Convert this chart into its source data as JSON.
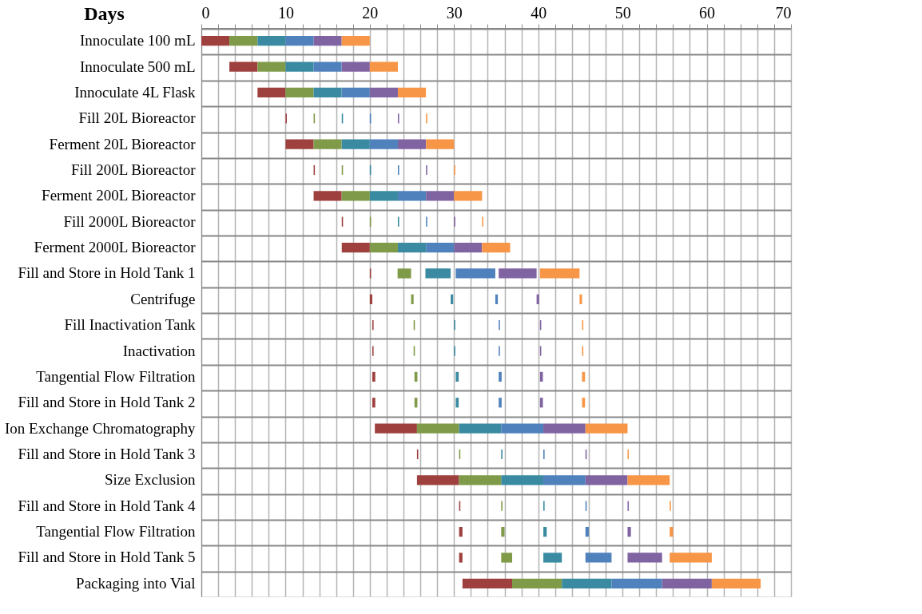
{
  "chart_data": {
    "type": "bar",
    "orientation": "horizontal",
    "xlabel": "Days",
    "categories": [
      "Innoculate 100 mL",
      "Innoculate 500 mL",
      "Innoculate 4L Flask",
      "Fill 20L Bioreactor",
      "Ferment 20L Bioreactor",
      "Fill 200L Bioreactor",
      "Ferment 200L Bioreactor",
      "Fill 2000L Bioreactor",
      "Ferment 2000L Bioreactor",
      "Fill and Store in Hold Tank 1",
      "Centrifuge",
      "Fill Inactivation Tank",
      "Inactivation",
      "Tangential Flow Filtration",
      "Fill and Store in Hold Tank 2",
      "Ion Exchange Chromatography",
      "Fill and Store in Hold Tank 3",
      "Size Exclusion",
      "Fill and Store in Hold Tank 4",
      "Tangential Flow Filtration",
      "Fill and Store in Hold Tank 5",
      "Packaging into Vial"
    ],
    "series": [
      {
        "color": "#9e413e",
        "base": [
          0,
          3.33,
          6.67,
          10,
          10,
          13.33,
          13.33,
          16.67,
          16.67,
          20,
          20,
          20.3,
          20.3,
          20.3,
          20.3,
          20.6,
          25.6,
          25.6,
          30.6,
          30.6,
          30.6,
          31
        ],
        "values": [
          3.33,
          3.33,
          3.33,
          0.15,
          3.33,
          0.15,
          3.33,
          0.15,
          3.33,
          0.15,
          0.3,
          0.15,
          0.15,
          0.35,
          0.35,
          5,
          0.15,
          5,
          0.15,
          0.4,
          0.4,
          5.9
        ]
      },
      {
        "color": "#7f9a48",
        "base": [
          3.33,
          6.67,
          10,
          13.33,
          13.33,
          16.67,
          16.67,
          20,
          20,
          23.3,
          24.9,
          25.2,
          25.2,
          25.3,
          25.3,
          25.6,
          30.6,
          30.6,
          35.6,
          35.6,
          35.6,
          36.9
        ],
        "values": [
          3.33,
          3.33,
          3.33,
          0.15,
          3.33,
          0.15,
          3.33,
          0.15,
          3.33,
          1.6,
          0.3,
          0.15,
          0.15,
          0.35,
          0.35,
          5,
          0.15,
          5,
          0.15,
          0.4,
          1.3,
          5.9
        ]
      },
      {
        "color": "#3a8ba1",
        "base": [
          6.67,
          10,
          13.33,
          16.67,
          16.67,
          20,
          20,
          23.33,
          23.33,
          26.6,
          29.6,
          30,
          30,
          30.2,
          30.2,
          30.6,
          35.6,
          35.6,
          40.6,
          40.6,
          40.6,
          42.8
        ],
        "values": [
          3.33,
          3.33,
          3.33,
          0.15,
          3.33,
          0.15,
          3.33,
          0.15,
          3.33,
          3.0,
          0.3,
          0.15,
          0.15,
          0.35,
          0.35,
          5,
          0.15,
          5,
          0.15,
          0.4,
          2.2,
          5.9
        ]
      },
      {
        "color": "#4f81bd",
        "base": [
          10,
          13.33,
          16.67,
          20,
          20,
          23.33,
          23.33,
          26.67,
          26.67,
          30.2,
          34.9,
          35.3,
          35.3,
          35.3,
          35.3,
          35.6,
          40.6,
          40.6,
          45.6,
          45.6,
          45.6,
          48.7
        ],
        "values": [
          3.33,
          3.33,
          3.33,
          0.15,
          3.33,
          0.15,
          3.33,
          0.15,
          3.33,
          4.7,
          0.3,
          0.15,
          0.15,
          0.35,
          0.35,
          5,
          0.15,
          5,
          0.15,
          0.4,
          3.1,
          6.0
        ]
      },
      {
        "color": "#8064a2",
        "base": [
          13.33,
          16.67,
          20,
          23.33,
          23.33,
          26.67,
          26.67,
          30,
          30,
          35.3,
          39.8,
          40.2,
          40.2,
          40.2,
          40.2,
          40.6,
          45.6,
          45.6,
          50.6,
          50.6,
          50.6,
          54.7
        ],
        "values": [
          3.33,
          3.33,
          3.33,
          0.15,
          3.33,
          0.15,
          3.33,
          0.15,
          3.33,
          4.5,
          0.3,
          0.15,
          0.15,
          0.35,
          0.35,
          5,
          0.15,
          5,
          0.15,
          0.4,
          4.1,
          5.9
        ]
      },
      {
        "color": "#f79646",
        "base": [
          16.67,
          20,
          23.33,
          26.67,
          26.67,
          30,
          30,
          33.33,
          33.33,
          40.2,
          44.9,
          45.2,
          45.2,
          45.2,
          45.2,
          45.6,
          50.6,
          50.6,
          55.6,
          55.6,
          55.6,
          60.6
        ],
        "values": [
          3.33,
          3.33,
          3.33,
          0.15,
          3.33,
          0.15,
          3.33,
          0.15,
          3.33,
          4.7,
          0.3,
          0.15,
          0.15,
          0.35,
          0.35,
          5,
          0.15,
          5,
          0.15,
          0.4,
          5.0,
          5.8
        ]
      }
    ],
    "xlim": [
      0,
      70
    ],
    "xticks": [
      0,
      {
        "value": 2,
        "label": null
      },
      {
        "value": 4,
        "label": null
      },
      {
        "value": 6,
        "label": null
      },
      {
        "value": 8,
        "label": null
      },
      10,
      {
        "value": 12,
        "label": null
      },
      {
        "value": 14,
        "label": null
      },
      {
        "value": 16,
        "label": null
      },
      {
        "value": 18,
        "label": null
      },
      20,
      {
        "value": 22,
        "label": null
      },
      {
        "value": 24,
        "label": null
      },
      {
        "value": 26,
        "label": null
      },
      {
        "value": 28,
        "label": null
      },
      30,
      {
        "value": 32,
        "label": null
      },
      {
        "value": 34,
        "label": null
      },
      {
        "value": 36,
        "label": null
      },
      {
        "value": 38,
        "label": null
      },
      40,
      {
        "value": 42,
        "label": null
      },
      {
        "value": 44,
        "label": null
      },
      {
        "value": 46,
        "label": null
      },
      {
        "value": 48,
        "label": null
      },
      50,
      {
        "value": 52,
        "label": null
      },
      {
        "value": 54,
        "label": null
      },
      {
        "value": 56,
        "label": null
      },
      {
        "value": 58,
        "label": null
      },
      60,
      {
        "value": 62,
        "label": null
      },
      {
        "value": 64,
        "label": null
      },
      {
        "value": 66,
        "label": null
      },
      {
        "value": 68,
        "label": null
      },
      70
    ],
    "grid": true,
    "legend": false
  }
}
